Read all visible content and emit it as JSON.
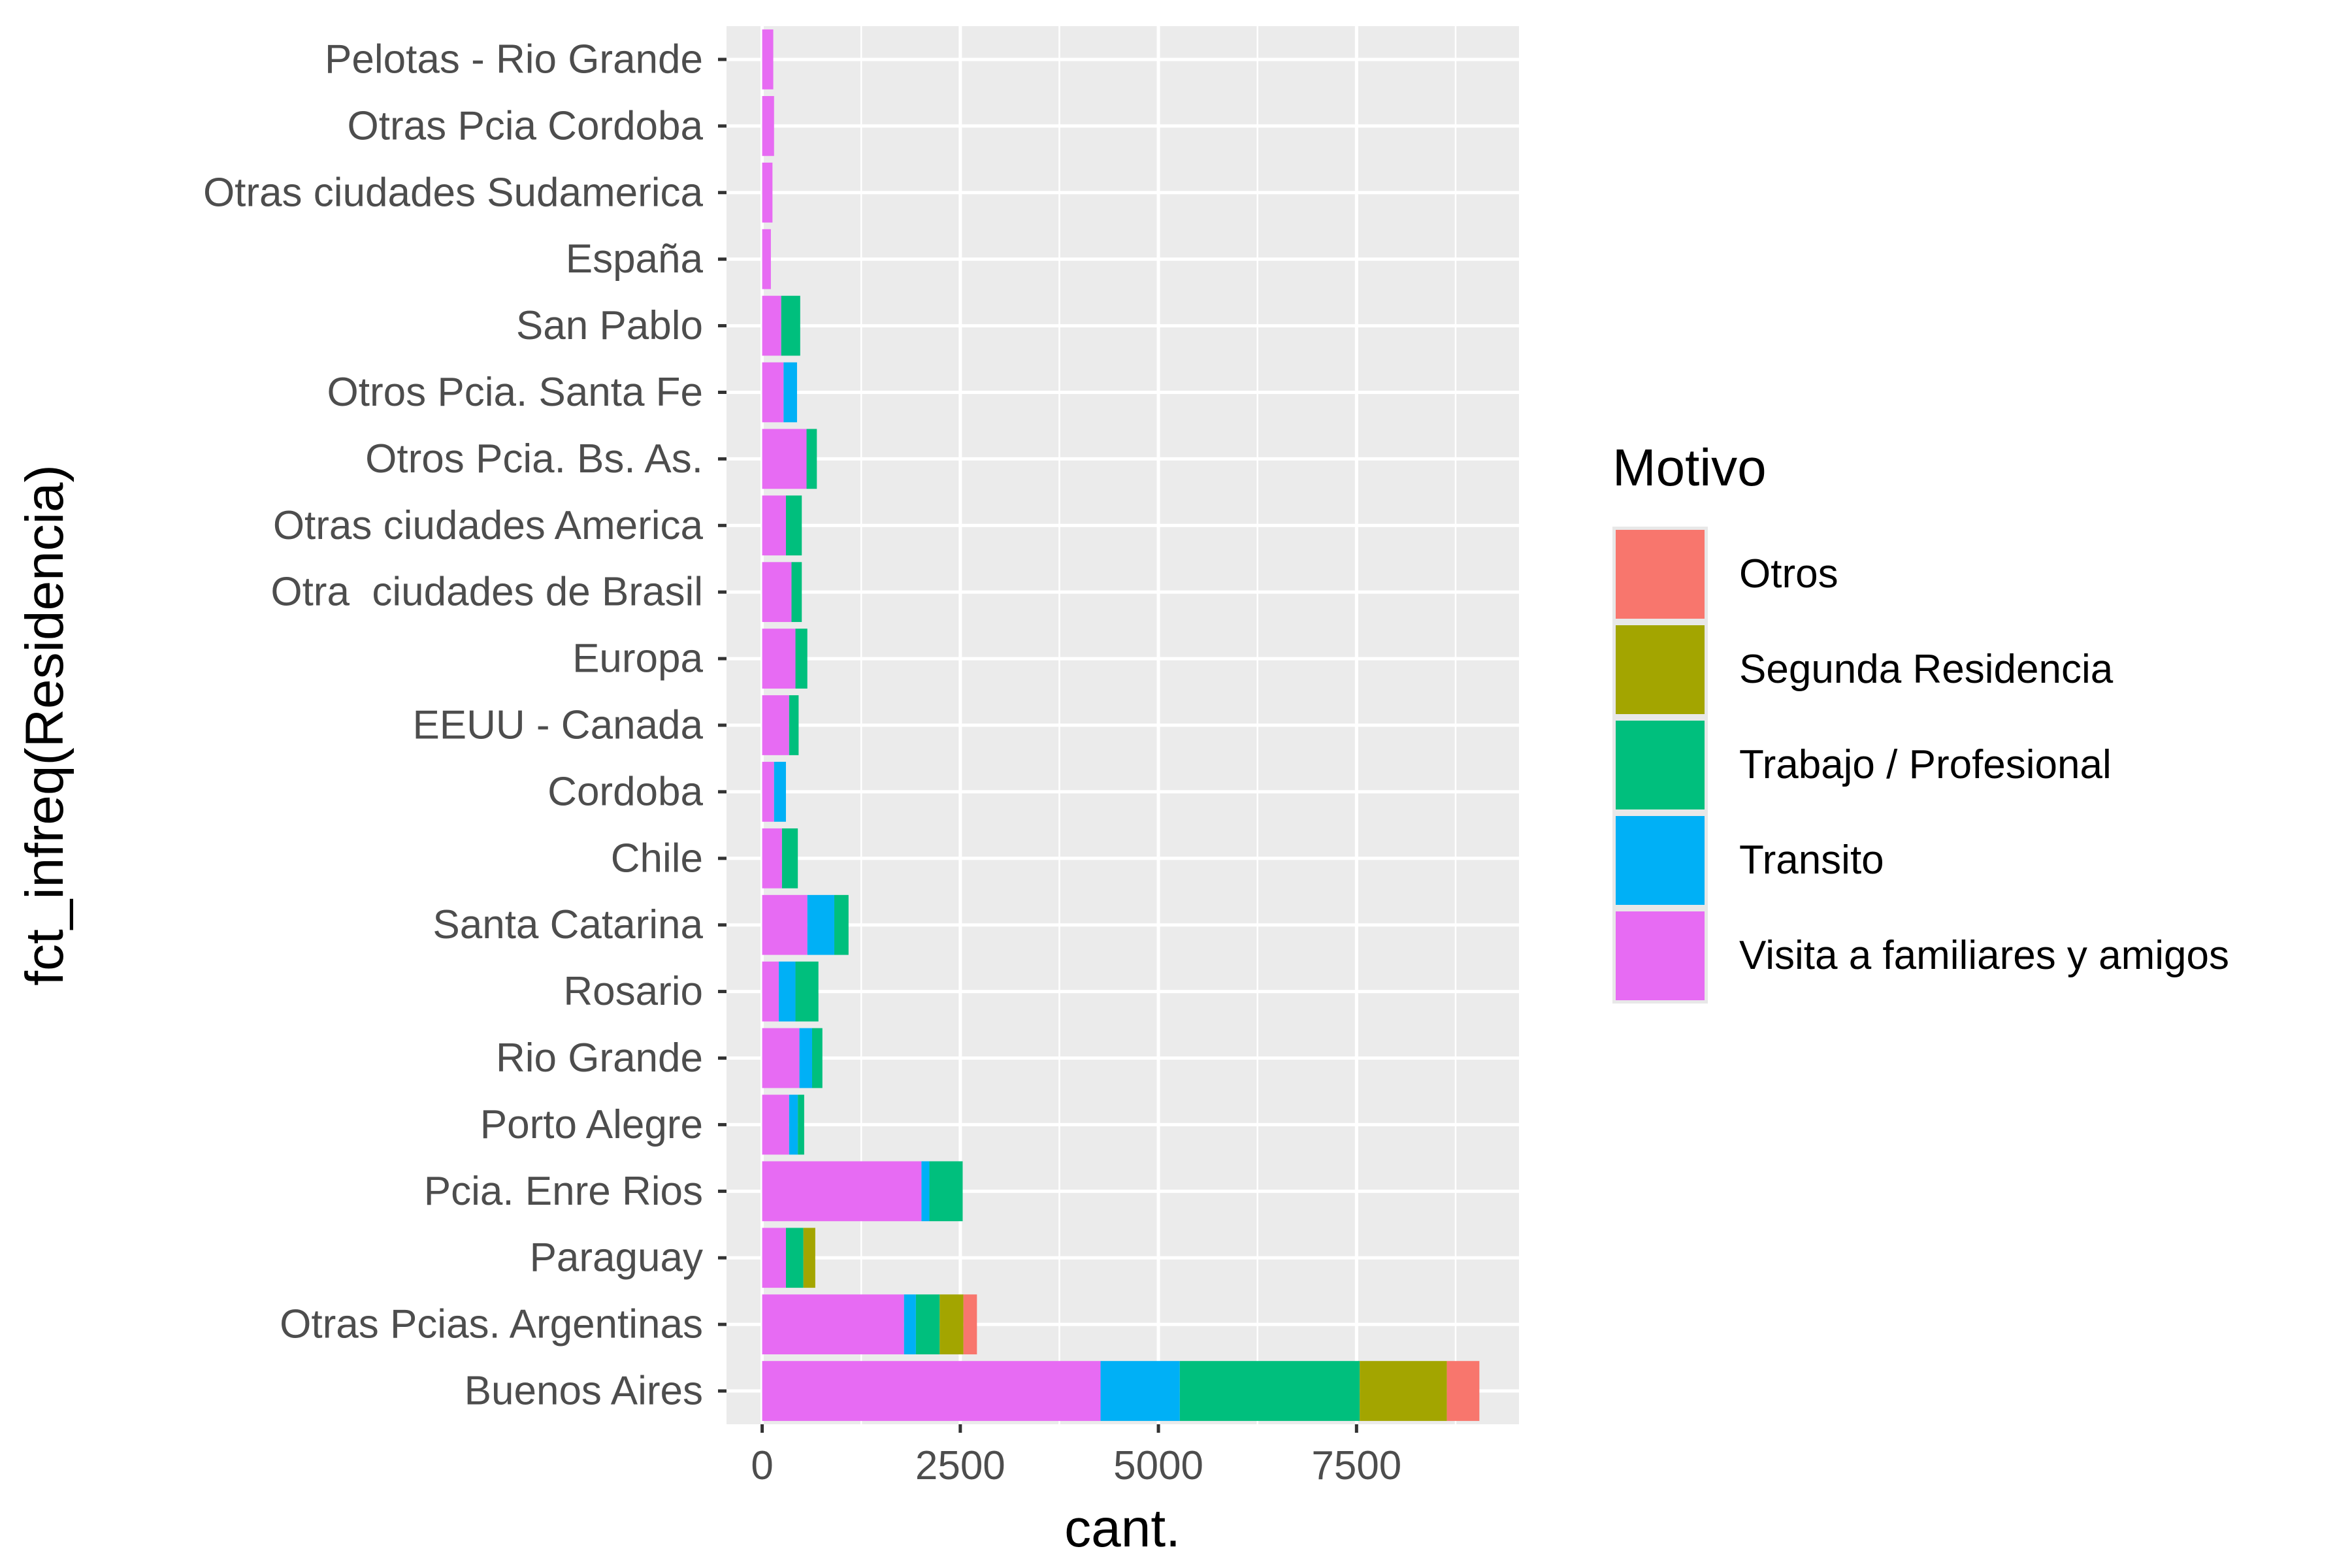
{
  "chart_data": {
    "type": "bar",
    "orientation": "horizontal",
    "stacked": true,
    "xlabel": "cant.",
    "ylabel": "fct_infreq(Residencia)",
    "xlim": [
      -450,
      9550
    ],
    "xticks": [
      0,
      2500,
      5000,
      7500
    ],
    "xtick_labels": [
      "0",
      "2500",
      "5000",
      "7500"
    ],
    "grid": true,
    "legend_position": "right",
    "legend_title": "Motivo",
    "categories": [
      "Buenos Aires",
      "Otras Pcias. Argentinas",
      "Paraguay",
      "Pcia. Enre Rios",
      "Porto Alegre",
      "Rio Grande",
      "Rosario",
      "Santa Catarina",
      "Chile",
      "Cordoba",
      "EEUU - Canada",
      "Europa",
      "Otra  ciudades de Brasil",
      "Otras ciudades America",
      "Otros Pcia. Bs. As.",
      "Otros Pcia. Santa Fe",
      "San Pablo",
      "España",
      "Otras ciudades Sudamerica",
      "Otras Pcia Cordoba",
      "Pelotas - Rio Grande"
    ],
    "series": [
      {
        "name": "Otros",
        "color": "#F8766D",
        "values": [
          410,
          170,
          0,
          0,
          0,
          0,
          0,
          0,
          0,
          0,
          0,
          0,
          0,
          0,
          0,
          0,
          0,
          0,
          0,
          0,
          0
        ]
      },
      {
        "name": "Segunda Residencia",
        "color": "#A3A500",
        "values": [
          1100,
          300,
          150,
          0,
          0,
          0,
          0,
          0,
          0,
          0,
          0,
          0,
          0,
          0,
          0,
          0,
          0,
          0,
          0,
          0,
          0
        ]
      },
      {
        "name": "Trabajo / Profesional",
        "color": "#00BF7D",
        "values": [
          2270,
          300,
          220,
          420,
          80,
          130,
          290,
          180,
          200,
          0,
          120,
          150,
          130,
          200,
          130,
          0,
          240,
          0,
          0,
          0,
          0
        ]
      },
      {
        "name": "Transito",
        "color": "#00B0F6",
        "values": [
          1000,
          150,
          0,
          100,
          110,
          160,
          210,
          340,
          0,
          150,
          0,
          0,
          0,
          0,
          0,
          170,
          0,
          0,
          0,
          0,
          0
        ]
      },
      {
        "name": "Visita a familiares y amigos",
        "color": "#E76BF3",
        "values": [
          4270,
          1790,
          300,
          2010,
          340,
          470,
          210,
          570,
          250,
          150,
          340,
          420,
          370,
          300,
          560,
          270,
          240,
          110,
          130,
          150,
          140
        ]
      }
    ]
  }
}
